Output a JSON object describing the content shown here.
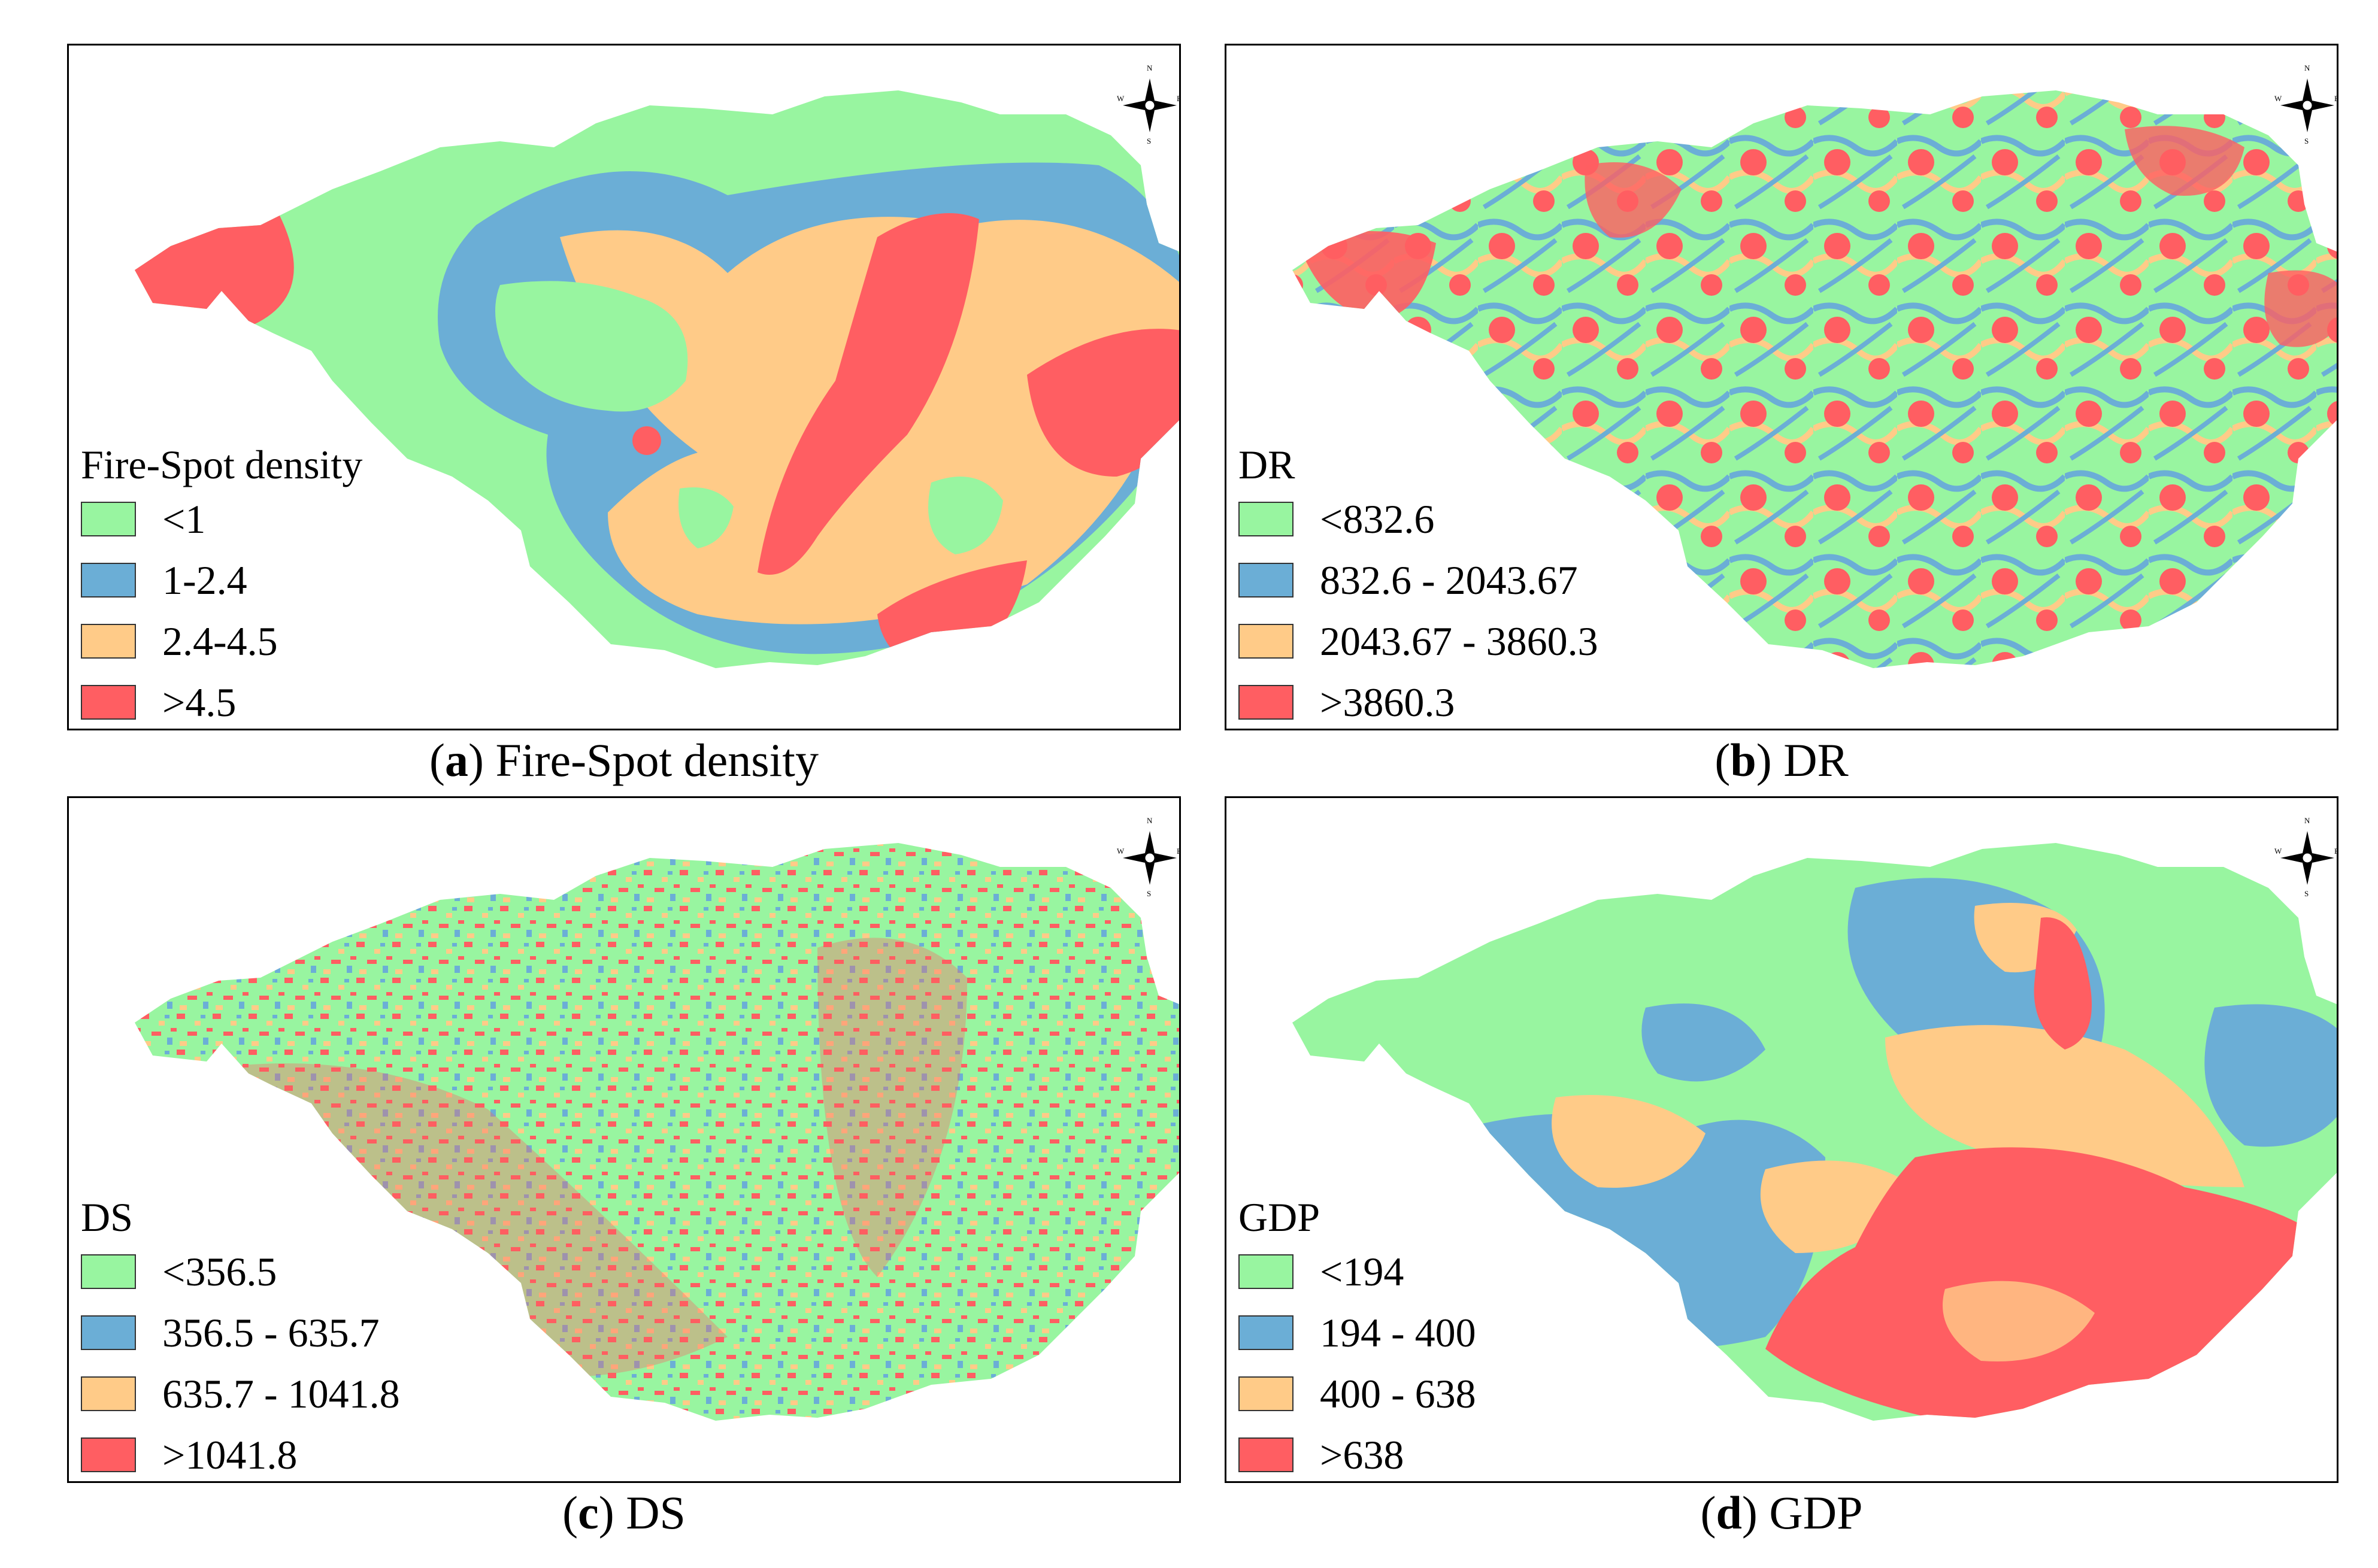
{
  "colors": {
    "green": "#98F5A0",
    "blue": "#6BAED6",
    "orange": "#FFCB88",
    "red": "#FF5E62"
  },
  "compass": {
    "n": "N",
    "s": "S",
    "e": "E",
    "w": "W"
  },
  "panels": {
    "a": {
      "legend_title": "Fire-Spot density",
      "classes": [
        {
          "label": "<1",
          "color": "#98F5A0"
        },
        {
          "label": "1-2.4",
          "color": "#6BAED6"
        },
        {
          "label": "2.4-4.5",
          "color": "#FFCB88"
        },
        {
          "label": ">4.5",
          "color": "#FF5E62"
        }
      ],
      "caption_letter": "a",
      "caption_text": "Fire-Spot density"
    },
    "b": {
      "legend_title": "DR",
      "classes": [
        {
          "label": "<832.6",
          "color": "#98F5A0"
        },
        {
          "label": "832.6 - 2043.67",
          "color": "#6BAED6"
        },
        {
          "label": "2043.67 - 3860.3",
          "color": "#FFCB88"
        },
        {
          "label": ">3860.3",
          "color": "#FF5E62"
        }
      ],
      "caption_letter": "b",
      "caption_text": "DR"
    },
    "c": {
      "legend_title": "DS",
      "classes": [
        {
          "label": "<356.5",
          "color": "#98F5A0"
        },
        {
          "label": "356.5 - 635.7",
          "color": "#6BAED6"
        },
        {
          "label": "635.7 - 1041.8",
          "color": "#FFCB88"
        },
        {
          "label": ">1041.8",
          "color": "#FF5E62"
        }
      ],
      "caption_letter": "c",
      "caption_text": "DS"
    },
    "d": {
      "legend_title": "GDP",
      "classes": [
        {
          "label": "<194",
          "color": "#98F5A0"
        },
        {
          "label": "194 - 400",
          "color": "#6BAED6"
        },
        {
          "label": "400 - 638",
          "color": "#FFCB88"
        },
        {
          "label": ">638",
          "color": "#FF5E62"
        }
      ],
      "caption_letter": "d",
      "caption_text": "GDP"
    }
  }
}
